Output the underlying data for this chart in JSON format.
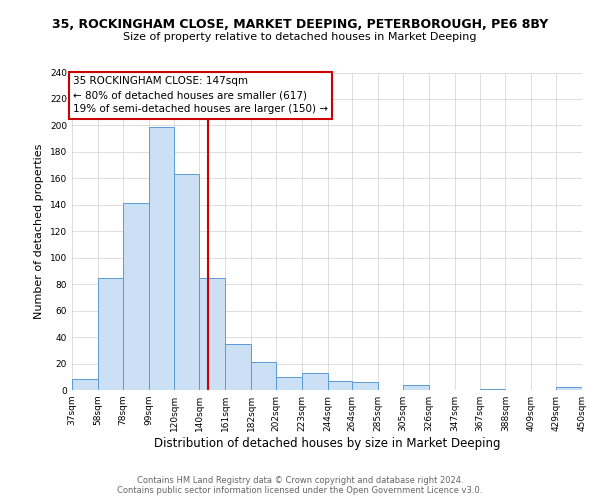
{
  "title": "35, ROCKINGHAM CLOSE, MARKET DEEPING, PETERBOROUGH, PE6 8BY",
  "subtitle": "Size of property relative to detached houses in Market Deeping",
  "xlabel": "Distribution of detached houses by size in Market Deeping",
  "ylabel": "Number of detached properties",
  "footer_line1": "Contains HM Land Registry data © Crown copyright and database right 2024.",
  "footer_line2": "Contains public sector information licensed under the Open Government Licence v3.0.",
  "bin_edges": [
    37,
    58,
    78,
    99,
    120,
    140,
    161,
    182,
    202,
    223,
    244,
    264,
    285,
    305,
    326,
    347,
    367,
    388,
    409,
    429,
    450
  ],
  "bin_counts": [
    8,
    85,
    141,
    199,
    163,
    85,
    35,
    21,
    10,
    13,
    7,
    6,
    0,
    4,
    0,
    0,
    1,
    0,
    0,
    2
  ],
  "bar_facecolor": "#cce0f5",
  "bar_edgecolor": "#5b9bd5",
  "vline_x": 147,
  "vline_color": "#cc0000",
  "annotation_title": "35 ROCKINGHAM CLOSE: 147sqm",
  "annotation_line1": "← 80% of detached houses are smaller (617)",
  "annotation_line2": "19% of semi-detached houses are larger (150) →",
  "annotation_box_edgecolor": "#cc0000",
  "ylim": [
    0,
    240
  ],
  "yticks": [
    0,
    20,
    40,
    60,
    80,
    100,
    120,
    140,
    160,
    180,
    200,
    220,
    240
  ],
  "background_color": "#ffffff",
  "grid_color": "#d0d0d0",
  "title_fontsize": 9,
  "subtitle_fontsize": 8,
  "xlabel_fontsize": 8.5,
  "ylabel_fontsize": 8,
  "tick_fontsize": 6.5,
  "annotation_fontsize": 7.5,
  "footer_fontsize": 6,
  "footer_color": "#666666"
}
